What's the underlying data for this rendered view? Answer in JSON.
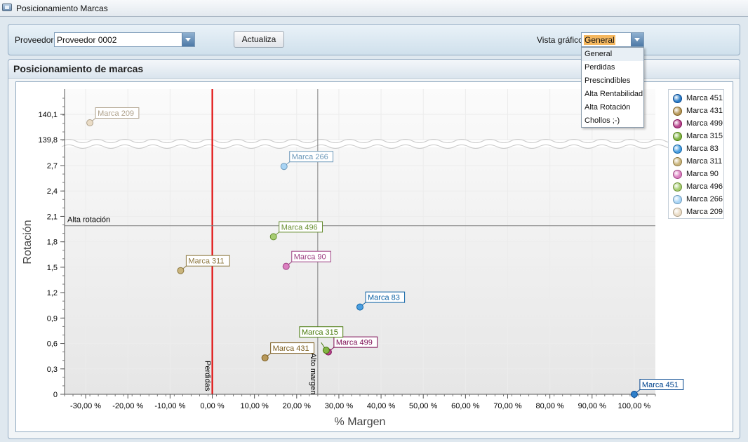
{
  "window": {
    "title": "Posicionamiento Marcas"
  },
  "toolbar": {
    "proveedor_label": "Proveedor:",
    "proveedor_value": "Proveedor 0002",
    "actualiza_label": "Actualiza",
    "vista_label": "Vista gráfico",
    "vista_value": "General"
  },
  "dropdown": {
    "options": [
      "General",
      "Perdidas",
      "Prescindibles",
      "Alta Rentabilidad",
      "Alta Rotación",
      "Chollos ;-)"
    ],
    "selected": "General"
  },
  "panel": {
    "title": "Posicionamiento de marcas"
  },
  "chart_data": {
    "type": "scatter",
    "xlabel": "% Margen",
    "ylabel": "Rotación",
    "xlim": [
      -35,
      105
    ],
    "ylim": [
      0,
      3.0
    ],
    "y_break": {
      "lower": 2.95,
      "upper": 139.8,
      "upper_max": 140.3
    },
    "x_ticks": [
      -30,
      -20,
      -10,
      0,
      10,
      20,
      30,
      40,
      50,
      60,
      70,
      80,
      90,
      100
    ],
    "x_tick_labels": [
      "-30,00 %",
      "-20,00 %",
      "-10,00 %",
      "0,00 %",
      "10,00 %",
      "20,00 %",
      "30,00 %",
      "40,00 %",
      "50,00 %",
      "60,00 %",
      "70,00 %",
      "80,00 %",
      "90,00 %",
      "100,00 %"
    ],
    "y_ticks": [
      0,
      0.3,
      0.6,
      0.9,
      1.2,
      1.5,
      1.8,
      2.1,
      2.4,
      2.7
    ],
    "y_tick_labels": [
      "0",
      "0,3",
      "0,6",
      "0,9",
      "1,2",
      "1,5",
      "1,8",
      "2,1",
      "2,4",
      "2,7"
    ],
    "y_ticks_upper": [
      139.8,
      140.1
    ],
    "y_ticks_upper_labels": [
      "139,8",
      "140,1"
    ],
    "reference_lines": [
      {
        "axis": "x",
        "value": 0,
        "label": "Perdidas",
        "color": "#e00000"
      },
      {
        "axis": "x",
        "value": 25,
        "label": "Alto margen",
        "color": "#808080"
      },
      {
        "axis": "y",
        "value": 1.99,
        "label": "Alta rotación",
        "color": "#808080"
      }
    ],
    "series": [
      {
        "name": "Marca 451",
        "x": 100.0,
        "y": 0.0,
        "color": "#2f7fc9"
      },
      {
        "name": "Marca 431",
        "x": 12.5,
        "y": 0.43,
        "color": "#b7985a"
      },
      {
        "name": "Marca 499",
        "x": 27.5,
        "y": 0.5,
        "color": "#b8478e"
      },
      {
        "name": "Marca 315",
        "x": 27.0,
        "y": 0.52,
        "color": "#83b545"
      },
      {
        "name": "Marca 83",
        "x": 35.0,
        "y": 1.03,
        "color": "#4a9ee0"
      },
      {
        "name": "Marca 311",
        "x": -7.5,
        "y": 1.46,
        "color": "#c9b47c"
      },
      {
        "name": "Marca 90",
        "x": 17.5,
        "y": 1.51,
        "color": "#db7fc0"
      },
      {
        "name": "Marca 496",
        "x": 14.5,
        "y": 1.86,
        "color": "#a6cc70"
      },
      {
        "name": "Marca 266",
        "x": 17.0,
        "y": 2.69,
        "color": "#a8d4f5"
      },
      {
        "name": "Marca 209",
        "x": -29.0,
        "y": 140.0,
        "color": "#eadcc6"
      }
    ],
    "legend_position": "right"
  }
}
